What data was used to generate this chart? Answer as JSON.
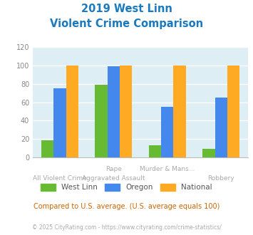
{
  "title_line1": "2019 West Linn",
  "title_line2": "Violent Crime Comparison",
  "title_color": "#1a7abf",
  "categories_line1": [
    "",
    "Rape",
    "Murder & Mans...",
    ""
  ],
  "categories_line2": [
    "All Violent Crime",
    "Aggravated Assault",
    "",
    "Robbery"
  ],
  "west_linn": [
    19,
    79,
    13,
    9
  ],
  "oregon": [
    75,
    99,
    55,
    65
  ],
  "national": [
    100,
    100,
    100,
    100
  ],
  "west_linn_color": "#66bb33",
  "oregon_color": "#4488ee",
  "national_color": "#ffaa22",
  "ylim": [
    0,
    120
  ],
  "yticks": [
    0,
    20,
    40,
    60,
    80,
    100,
    120
  ],
  "background_color": "#ddeef5",
  "grid_color": "#ffffff",
  "note": "Compared to U.S. average. (U.S. average equals 100)",
  "note_color": "#cc6600",
  "footer": "© 2025 CityRating.com - https://www.cityrating.com/crime-statistics/",
  "footer_color": "#aaaaaa",
  "label_color": "#aaaaaa",
  "legend_text_color": "#555555",
  "ytick_color": "#888888"
}
